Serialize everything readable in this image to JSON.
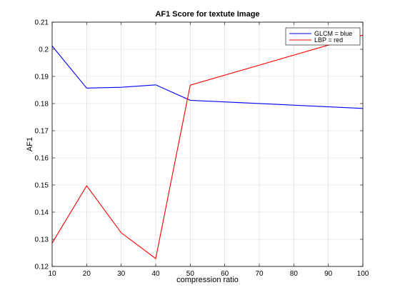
{
  "chart_data": {
    "type": "line",
    "title": "AF1 Score for textute Image",
    "xlabel": "compression ratio",
    "ylabel": "AF1",
    "xlim": [
      10,
      100
    ],
    "ylim": [
      0.12,
      0.21
    ],
    "x_ticks": [
      10,
      20,
      30,
      40,
      50,
      60,
      70,
      80,
      90,
      100
    ],
    "y_ticks": [
      0.12,
      0.13,
      0.14,
      0.15,
      0.16,
      0.17,
      0.18,
      0.19,
      0.2,
      0.21
    ],
    "y_tick_labels": [
      "0.12",
      "0.13",
      "0.14",
      "0.15",
      "0.16",
      "0.17",
      "0.18",
      "0.19",
      "0.2",
      "0.21"
    ],
    "grid": true,
    "legend_position": "top-right",
    "series": [
      {
        "name": "GLCM = blue",
        "color": "#0000ff",
        "x": [
          10,
          20,
          30,
          40,
          50,
          100
        ],
        "values": [
          0.2012,
          0.1857,
          0.186,
          0.1869,
          0.1812,
          0.1782
        ]
      },
      {
        "name": "LBP = red",
        "color": "#ff0000",
        "x": [
          10,
          20,
          30,
          40,
          50,
          100
        ],
        "values": [
          0.1286,
          0.1497,
          0.1324,
          0.1229,
          0.1868,
          0.2052
        ]
      }
    ]
  }
}
